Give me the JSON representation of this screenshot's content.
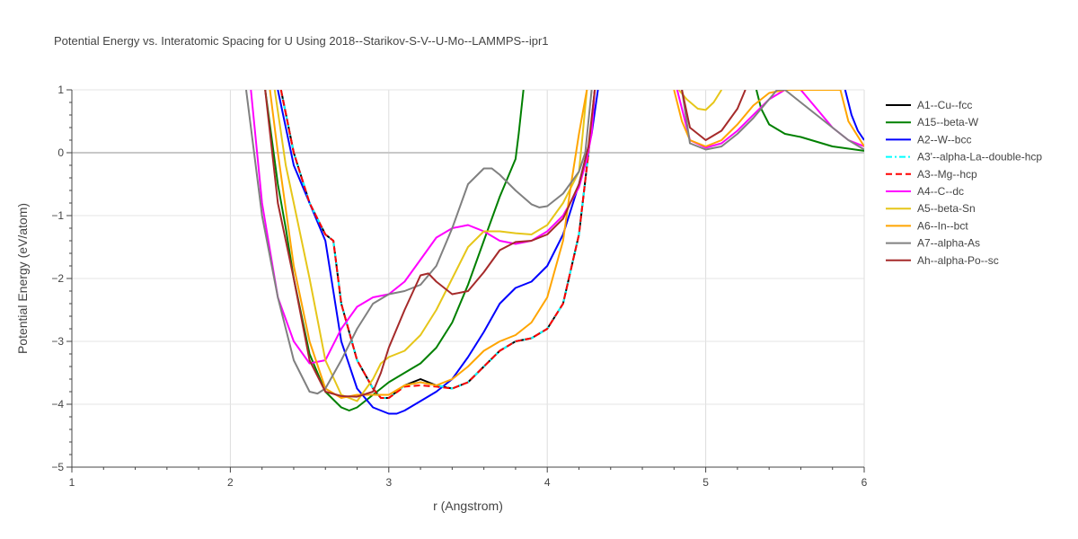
{
  "chart_data": {
    "type": "line",
    "title": "Potential Energy vs. Interatomic Spacing for U Using 2018--Starikov-S-V--U-Mo--LAMMPS--ipr1",
    "xlabel": "r (Angstrom)",
    "ylabel": "Potential Energy (eV/atom)",
    "xlim": [
      1,
      6
    ],
    "ylim": [
      -5,
      1
    ],
    "xticks": [
      1,
      2,
      3,
      4,
      5,
      6
    ],
    "yticks": [
      -5,
      -4,
      -3,
      -2,
      -1,
      0,
      1
    ],
    "xtick_labels": [
      "1",
      "2",
      "3",
      "4",
      "5",
      "6"
    ],
    "ytick_labels": [
      "−5",
      "−4",
      "−3",
      "−2",
      "−1",
      "0",
      "1"
    ],
    "grid": true,
    "legend_position": "right",
    "series": [
      {
        "name": "A1--Cu--fcc",
        "color": "#000000",
        "dash": "solid",
        "x": [
          2.32,
          2.4,
          2.5,
          2.6,
          2.65,
          2.7,
          2.8,
          2.9,
          2.95,
          3.0,
          3.1,
          3.2,
          3.3,
          3.4,
          3.5,
          3.6,
          3.7,
          3.8,
          3.9,
          4.0,
          4.1,
          4.2,
          4.26,
          4.3
        ],
        "y": [
          1.0,
          0.0,
          -0.8,
          -1.3,
          -1.4,
          -2.4,
          -3.3,
          -3.75,
          -3.9,
          -3.9,
          -3.7,
          -3.6,
          -3.7,
          -3.75,
          -3.65,
          -3.4,
          -3.15,
          -3.0,
          -2.95,
          -2.8,
          -2.4,
          -1.3,
          0.0,
          1.0
        ]
      },
      {
        "name": "A15--beta-W",
        "color": "#008000",
        "dash": "solid",
        "x": [
          2.22,
          2.3,
          2.35,
          2.4,
          2.5,
          2.6,
          2.7,
          2.75,
          2.8,
          2.9,
          3.0,
          3.1,
          3.2,
          3.3,
          3.4,
          3.5,
          3.6,
          3.7,
          3.8,
          3.82,
          3.85,
          5.32,
          5.35,
          5.4,
          5.5,
          5.6,
          5.8,
          6.0
        ],
        "y": [
          1.0,
          -0.5,
          -1.2,
          -2.0,
          -3.2,
          -3.8,
          -4.05,
          -4.1,
          -4.05,
          -3.85,
          -3.65,
          -3.5,
          -3.35,
          -3.1,
          -2.7,
          -2.1,
          -1.4,
          -0.7,
          -0.1,
          0.3,
          1.0,
          1.0,
          0.7,
          0.45,
          0.3,
          0.25,
          0.1,
          0.03
        ]
      },
      {
        "name": "A2--W--bcc",
        "color": "#0000ff",
        "dash": "solid",
        "x": [
          2.3,
          2.4,
          2.5,
          2.6,
          2.7,
          2.8,
          2.9,
          3.0,
          3.05,
          3.1,
          3.2,
          3.3,
          3.4,
          3.5,
          3.6,
          3.7,
          3.8,
          3.9,
          4.0,
          4.1,
          4.2,
          4.28,
          4.32,
          5.88,
          5.92,
          5.96,
          6.0
        ],
        "y": [
          1.0,
          -0.2,
          -0.8,
          -1.4,
          -3.0,
          -3.75,
          -4.05,
          -4.15,
          -4.15,
          -4.1,
          -3.95,
          -3.8,
          -3.6,
          -3.25,
          -2.85,
          -2.4,
          -2.15,
          -2.05,
          -1.8,
          -1.3,
          -0.5,
          0.3,
          1.0,
          1.0,
          0.6,
          0.35,
          0.2
        ]
      },
      {
        "name": "A3'--alpha-La--double-hcp",
        "color": "#00ffff",
        "dash": "dashdot",
        "x": [
          2.32,
          2.4,
          2.5,
          2.6,
          2.65,
          2.7,
          2.8,
          2.9,
          2.95,
          3.0,
          3.1,
          3.2,
          3.3,
          3.4,
          3.5,
          3.6,
          3.7,
          3.8,
          3.9,
          4.0,
          4.1,
          4.2,
          4.26,
          4.3
        ],
        "y": [
          1.0,
          0.0,
          -0.8,
          -1.3,
          -1.4,
          -2.4,
          -3.3,
          -3.75,
          -3.9,
          -3.9,
          -3.7,
          -3.65,
          -3.7,
          -3.75,
          -3.65,
          -3.4,
          -3.15,
          -3.0,
          -2.95,
          -2.8,
          -2.4,
          -1.3,
          0.0,
          1.0
        ]
      },
      {
        "name": "A3--Mg--hcp",
        "color": "#ff0000",
        "dash": "dash",
        "x": [
          2.32,
          2.4,
          2.5,
          2.6,
          2.65,
          2.7,
          2.8,
          2.9,
          2.95,
          3.0,
          3.1,
          3.2,
          3.3,
          3.4,
          3.5,
          3.6,
          3.7,
          3.8,
          3.9,
          4.0,
          4.1,
          4.2,
          4.26,
          4.3
        ],
        "y": [
          1.0,
          0.0,
          -0.8,
          -1.3,
          -1.4,
          -2.4,
          -3.3,
          -3.75,
          -3.9,
          -3.9,
          -3.72,
          -3.7,
          -3.72,
          -3.75,
          -3.65,
          -3.4,
          -3.15,
          -3.0,
          -2.95,
          -2.8,
          -2.4,
          -1.3,
          0.0,
          1.0
        ]
      },
      {
        "name": "A4--C--dc",
        "color": "#ff00ff",
        "dash": "solid",
        "x": [
          2.13,
          2.2,
          2.3,
          2.4,
          2.5,
          2.6,
          2.7,
          2.8,
          2.9,
          3.0,
          3.1,
          3.2,
          3.3,
          3.4,
          3.5,
          3.6,
          3.7,
          3.8,
          3.9,
          4.0,
          4.1,
          4.2,
          4.25,
          4.28,
          4.3,
          4.82,
          4.9,
          5.0,
          5.1,
          5.2,
          5.3,
          5.4,
          5.5,
          5.6,
          5.7,
          5.8,
          5.9,
          6.0
        ],
        "y": [
          1.0,
          -0.8,
          -2.3,
          -3.0,
          -3.35,
          -3.3,
          -2.8,
          -2.45,
          -2.3,
          -2.25,
          -2.05,
          -1.7,
          -1.35,
          -1.2,
          -1.15,
          -1.25,
          -1.4,
          -1.45,
          -1.4,
          -1.25,
          -1.0,
          -0.55,
          -0.1,
          0.3,
          1.0,
          1.0,
          0.2,
          0.08,
          0.15,
          0.35,
          0.6,
          0.85,
          1.0,
          1.0,
          0.7,
          0.4,
          0.2,
          0.1
        ]
      },
      {
        "name": "A5--beta-Sn",
        "color": "#e6c619",
        "dash": "solid",
        "x": [
          2.28,
          2.35,
          2.4,
          2.5,
          2.6,
          2.7,
          2.8,
          2.9,
          2.95,
          3.0,
          3.1,
          3.2,
          3.3,
          3.4,
          3.5,
          3.6,
          3.7,
          3.8,
          3.9,
          4.0,
          4.1,
          4.2,
          4.22,
          4.25,
          4.83,
          4.88,
          4.95,
          5.0,
          5.05,
          5.1
        ],
        "y": [
          1.0,
          -0.2,
          -0.8,
          -2.0,
          -3.3,
          -3.85,
          -3.95,
          -3.6,
          -3.35,
          -3.25,
          -3.15,
          -2.9,
          -2.5,
          -2.0,
          -1.5,
          -1.25,
          -1.25,
          -1.28,
          -1.3,
          -1.15,
          -0.8,
          -0.3,
          0.2,
          1.0,
          1.0,
          0.85,
          0.7,
          0.68,
          0.8,
          1.0
        ]
      },
      {
        "name": "A6--In--bct",
        "color": "#ffa500",
        "dash": "solid",
        "x": [
          2.25,
          2.3,
          2.4,
          2.5,
          2.6,
          2.7,
          2.8,
          2.9,
          3.0,
          3.1,
          3.2,
          3.3,
          3.4,
          3.5,
          3.6,
          3.7,
          3.8,
          3.9,
          4.0,
          4.1,
          4.15,
          4.2,
          4.25,
          4.8,
          4.85,
          4.9,
          5.0,
          5.1,
          5.2,
          5.3,
          5.4,
          5.5,
          5.55,
          5.85,
          5.9,
          6.0
        ],
        "y": [
          1.0,
          0.0,
          -1.8,
          -3.0,
          -3.75,
          -3.9,
          -3.85,
          -3.85,
          -3.85,
          -3.7,
          -3.65,
          -3.7,
          -3.6,
          -3.4,
          -3.15,
          -3.0,
          -2.9,
          -2.7,
          -2.3,
          -1.4,
          -0.5,
          0.3,
          1.0,
          1.0,
          0.5,
          0.2,
          0.1,
          0.2,
          0.45,
          0.75,
          0.95,
          1.0,
          1.0,
          1.0,
          0.5,
          0.1
        ]
      },
      {
        "name": "A7--alpha-As",
        "color": "#808080",
        "dash": "solid",
        "x": [
          2.1,
          2.2,
          2.3,
          2.4,
          2.5,
          2.55,
          2.6,
          2.7,
          2.8,
          2.9,
          3.0,
          3.1,
          3.2,
          3.3,
          3.4,
          3.5,
          3.6,
          3.65,
          3.7,
          3.8,
          3.9,
          3.95,
          4.0,
          4.1,
          4.2,
          4.24,
          4.28,
          4.85,
          4.9,
          5.0,
          5.1,
          5.2,
          5.3,
          5.4,
          5.45,
          5.5,
          5.6,
          5.7,
          5.8,
          5.9,
          6.0
        ],
        "y": [
          1.0,
          -1.0,
          -2.3,
          -3.3,
          -3.8,
          -3.83,
          -3.75,
          -3.3,
          -2.8,
          -2.4,
          -2.25,
          -2.2,
          -2.1,
          -1.8,
          -1.2,
          -0.5,
          -0.25,
          -0.25,
          -0.35,
          -0.6,
          -0.82,
          -0.87,
          -0.85,
          -0.65,
          -0.3,
          0.0,
          1.0,
          1.0,
          0.15,
          0.05,
          0.1,
          0.3,
          0.55,
          0.85,
          1.0,
          1.0,
          0.8,
          0.6,
          0.4,
          0.2,
          0.05
        ]
      },
      {
        "name": "Ah--alpha-Po--sc",
        "color": "#a52a2a",
        "dash": "solid",
        "x": [
          2.22,
          2.3,
          2.4,
          2.5,
          2.6,
          2.7,
          2.8,
          2.9,
          2.95,
          3.0,
          3.1,
          3.2,
          3.25,
          3.3,
          3.4,
          3.5,
          3.6,
          3.7,
          3.8,
          3.9,
          4.0,
          4.1,
          4.2,
          4.26,
          4.3,
          4.85,
          4.9,
          5.0,
          5.1,
          5.2,
          5.25
        ],
        "y": [
          1.0,
          -0.8,
          -2.0,
          -3.3,
          -3.8,
          -3.87,
          -3.88,
          -3.8,
          -3.5,
          -3.1,
          -2.5,
          -1.95,
          -1.92,
          -2.05,
          -2.25,
          -2.2,
          -1.9,
          -1.55,
          -1.42,
          -1.4,
          -1.3,
          -1.05,
          -0.5,
          0.1,
          1.0,
          1.0,
          0.4,
          0.2,
          0.35,
          0.7,
          1.0
        ]
      }
    ]
  }
}
